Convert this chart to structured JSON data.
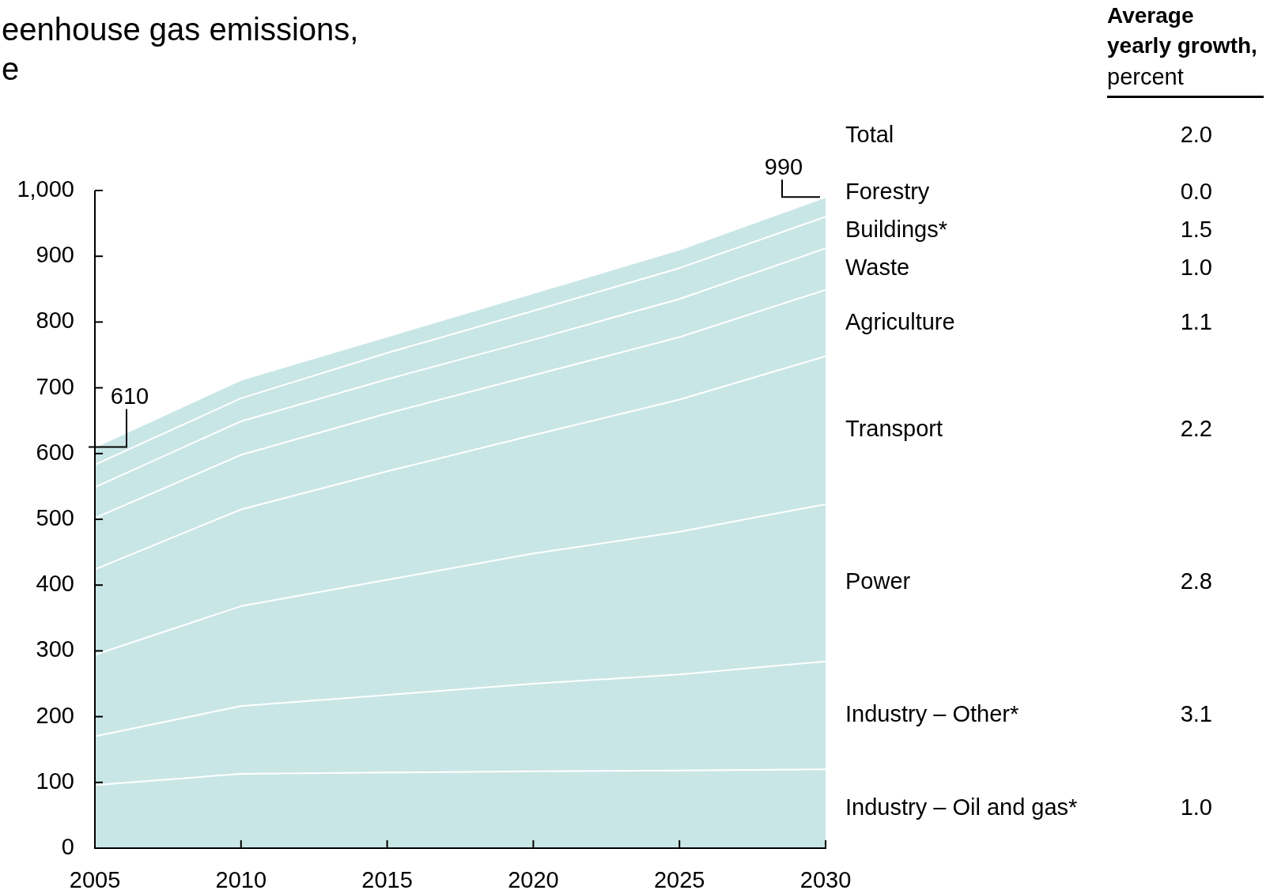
{
  "chart_data": {
    "type": "area",
    "title": "eenhouse gas emissions,",
    "subtitle": "e",
    "x": [
      2005,
      2010,
      2015,
      2020,
      2025,
      2030
    ],
    "stacked": true,
    "grid": false,
    "legend": false,
    "marker": "none",
    "xlim": [
      2005,
      2030
    ],
    "xticks": [
      2005,
      2010,
      2015,
      2020,
      2025,
      2030
    ],
    "ylim": [
      0,
      1000
    ],
    "yticks": [
      0,
      100,
      200,
      300,
      400,
      500,
      600,
      700,
      800,
      900,
      {
        "value": 1000,
        "label": "1,000"
      }
    ],
    "series": [
      {
        "name": "Industry – Oil and gas*",
        "color": "#c9e6e6",
        "values": [
          96,
          113,
          115,
          117,
          118,
          120
        ]
      },
      {
        "name": "Industry – Other*",
        "color": "#c9e6e6",
        "values": [
          74,
          103,
          118,
          133,
          146,
          164
        ]
      },
      {
        "name": "Power",
        "color": "#c9e6e6",
        "values": [
          124,
          152,
          175,
          198,
          217,
          239
        ]
      },
      {
        "name": "Transport",
        "color": "#c9e6e6",
        "values": [
          130,
          147,
          165,
          180,
          201,
          225
        ]
      },
      {
        "name": "Agriculture",
        "color": "#c9e6e6",
        "values": [
          78,
          83,
          88,
          91,
          95,
          101
        ]
      },
      {
        "name": "Waste",
        "color": "#c9e6e6",
        "values": [
          47,
          51,
          52,
          54,
          58,
          63
        ]
      },
      {
        "name": "Buildings*",
        "color": "#c9e6e6",
        "values": [
          34,
          35,
          40,
          44,
          47,
          48
        ]
      },
      {
        "name": "Forestry",
        "color": "#c9e6e6",
        "values": [
          27,
          28,
          25,
          27,
          28,
          30
        ]
      }
    ],
    "annotations": [
      {
        "text": "610",
        "x": 2005,
        "y": 610
      },
      {
        "text": "990",
        "x": 2030,
        "y": 990
      },
      "Average yearly growth,",
      "percent",
      "Total",
      "2.0",
      "1.0",
      "3.1",
      "2.8",
      "2.2",
      "1.1",
      "1.0",
      "1.5",
      "0.0"
    ]
  }
}
